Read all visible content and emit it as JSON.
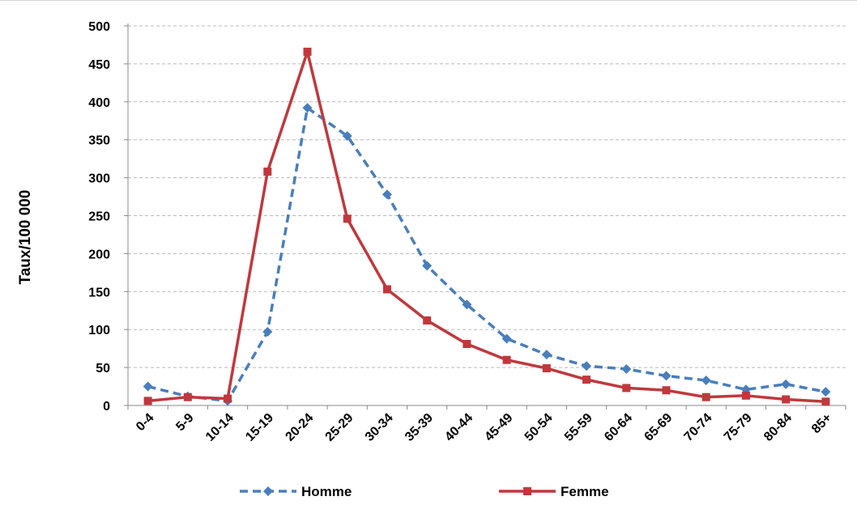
{
  "chart_data": {
    "type": "line",
    "title": "",
    "xlabel": "",
    "ylabel": "Taux/100 000",
    "ylim": [
      0,
      500
    ],
    "yticks": [
      0,
      50,
      100,
      150,
      200,
      250,
      300,
      350,
      400,
      450,
      500
    ],
    "grid": true,
    "legend_position": "bottom",
    "categories": [
      "0-4",
      "5-9",
      "10-14",
      "15-19",
      "20-24",
      "25-29",
      "30-34",
      "35-39",
      "40-44",
      "45-49",
      "50-54",
      "55-59",
      "60-64",
      "65-69",
      "70-74",
      "75-79",
      "80-84",
      "85+"
    ],
    "series": [
      {
        "name": "Homme",
        "color": "#4a7ebb",
        "line_style": "dashed",
        "marker": "diamond",
        "values": [
          25,
          12,
          6,
          97,
          392,
          355,
          278,
          184,
          133,
          88,
          67,
          52,
          48,
          39,
          33,
          21,
          28,
          18
        ]
      },
      {
        "name": "Femme",
        "color": "#c0383d",
        "line_style": "solid",
        "marker": "square",
        "values": [
          6,
          11,
          9,
          308,
          466,
          246,
          153,
          112,
          81,
          60,
          49,
          34,
          23,
          20,
          11,
          13,
          8,
          5
        ]
      }
    ]
  }
}
